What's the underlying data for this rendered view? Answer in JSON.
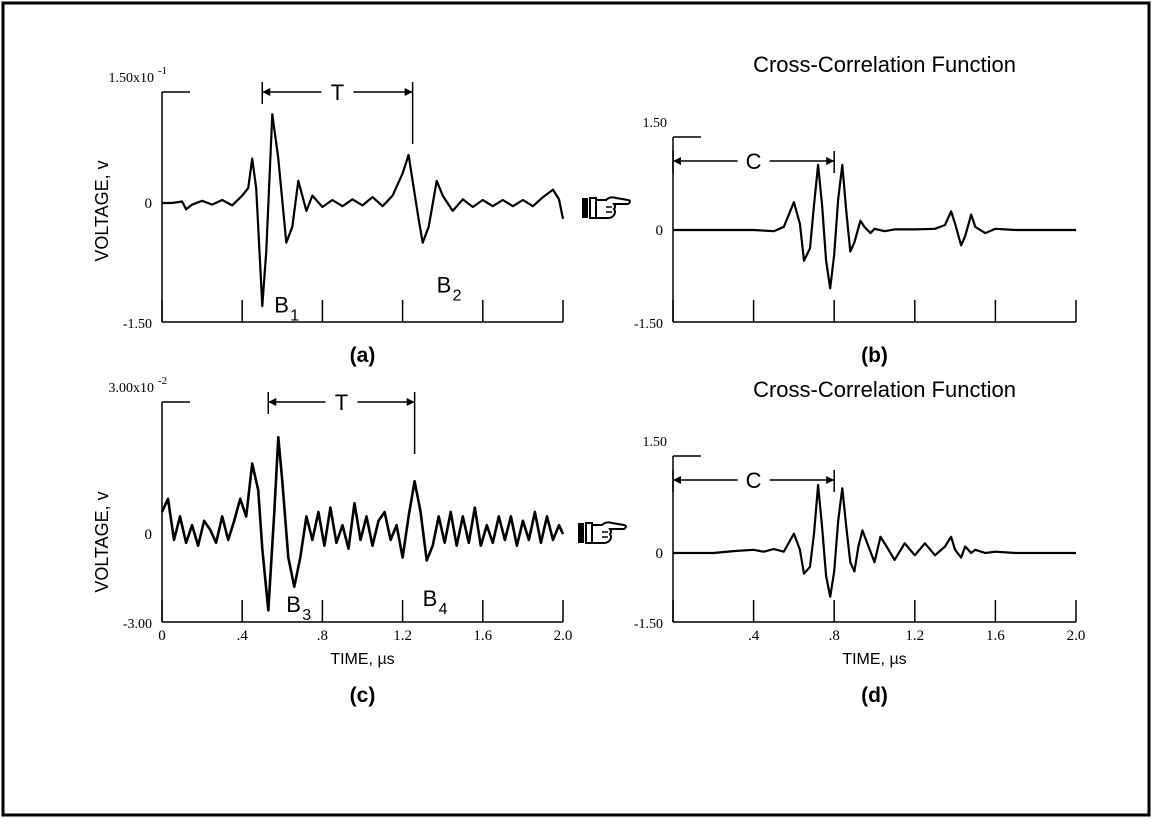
{
  "colors": {
    "ink": "#000000",
    "background": "#ffffff"
  },
  "icons": {
    "pointer": "pointing-hand-icon"
  },
  "chart_data": [
    {
      "id": "a",
      "type": "line",
      "panel_label": "(a)",
      "title": "",
      "ylabel": "VOLTAGE, v",
      "xlabel": "",
      "y_top_label": "1.50x10",
      "y_top_exp": "-1",
      "y_bottom_label": "-1.50",
      "y_zero_label": "0",
      "xlim": [
        0,
        2.0
      ],
      "ylim": [
        -0.15,
        0.15
      ],
      "x_tick_values": [
        0,
        0.4,
        0.8,
        1.2,
        1.6,
        2.0
      ],
      "x_tick_labels": [],
      "annotation": {
        "label": "T",
        "x_start": 0.5,
        "x_end": 1.25
      },
      "peak_labels": [
        {
          "text": "B",
          "sub": "1",
          "x": 0.56,
          "y": -0.095
        },
        {
          "text": "B",
          "sub": "2",
          "x": 1.37,
          "y": -0.07
        }
      ],
      "series": [
        {
          "x": [
            0,
            0.05,
            0.1,
            0.12,
            0.15,
            0.2,
            0.25,
            0.3,
            0.35,
            0.4,
            0.43,
            0.45,
            0.47,
            0.5,
            0.52,
            0.55,
            0.58,
            0.62,
            0.65,
            0.68,
            0.72,
            0.75,
            0.8,
            0.85,
            0.9,
            0.95,
            1.0,
            1.05,
            1.1,
            1.15,
            1.2,
            1.23,
            1.25,
            1.28,
            1.3,
            1.33,
            1.37,
            1.4,
            1.45,
            1.5,
            1.55,
            1.6,
            1.65,
            1.7,
            1.75,
            1.8,
            1.85,
            1.9,
            1.95,
            1.98,
            2.0
          ],
          "y": [
            0,
            0,
            0.002,
            -0.008,
            -0.002,
            0.003,
            -0.002,
            0.004,
            -0.003,
            0.01,
            0.02,
            0.06,
            0.02,
            -0.13,
            -0.06,
            0.12,
            0.06,
            -0.05,
            -0.03,
            0.03,
            -0.01,
            0.01,
            -0.005,
            0.004,
            -0.004,
            0.005,
            -0.003,
            0.008,
            -0.004,
            0.01,
            0.04,
            0.065,
            0.03,
            -0.02,
            -0.05,
            -0.03,
            0.03,
            0.01,
            -0.01,
            0.005,
            -0.005,
            0.004,
            -0.004,
            0.004,
            -0.004,
            0.004,
            -0.004,
            0.008,
            0.018,
            0.005,
            -0.02
          ]
        }
      ]
    },
    {
      "id": "b",
      "type": "line",
      "panel_label": "(b)",
      "title": "Cross-Correlation Function",
      "ylabel": "",
      "xlabel": "",
      "y_top_label": "1.50",
      "y_bottom_label": "-1.50",
      "y_zero_label": "0",
      "xlim": [
        0,
        2.0
      ],
      "ylim": [
        -1.5,
        1.5
      ],
      "x_tick_values": [
        0,
        0.4,
        0.8,
        1.2,
        1.6,
        2.0
      ],
      "x_tick_labels": [],
      "annotation": {
        "label": "C",
        "x_start": 0,
        "x_end": 0.8
      },
      "series": [
        {
          "x": [
            0,
            0.1,
            0.2,
            0.3,
            0.4,
            0.5,
            0.55,
            0.6,
            0.63,
            0.65,
            0.68,
            0.7,
            0.72,
            0.74,
            0.76,
            0.78,
            0.8,
            0.82,
            0.84,
            0.86,
            0.88,
            0.9,
            0.93,
            0.95,
            0.98,
            1.0,
            1.05,
            1.1,
            1.2,
            1.3,
            1.35,
            1.38,
            1.4,
            1.43,
            1.45,
            1.48,
            1.5,
            1.55,
            1.6,
            1.7,
            1.8,
            1.9,
            2.0
          ],
          "y": [
            0,
            0,
            0,
            0,
            0,
            -0.02,
            0.05,
            0.45,
            0.1,
            -0.5,
            -0.3,
            0.4,
            1.05,
            0.4,
            -0.5,
            -0.95,
            -0.4,
            0.5,
            1.05,
            0.3,
            -0.35,
            -0.2,
            0.15,
            0.05,
            -0.05,
            0.02,
            -0.02,
            0.01,
            0.01,
            0.02,
            0.08,
            0.3,
            0.1,
            -0.25,
            -0.1,
            0.25,
            0.05,
            -0.05,
            0.02,
            0,
            0,
            0,
            0
          ]
        }
      ]
    },
    {
      "id": "c",
      "type": "line",
      "panel_label": "(c)",
      "title": "",
      "ylabel": "VOLTAGE, v",
      "xlabel": "TIME, µs",
      "y_top_label": "3.00x10",
      "y_top_exp": "-2",
      "y_bottom_label": "-3.00",
      "y_zero_label": "0",
      "xlim": [
        0,
        2.0
      ],
      "ylim": [
        -0.03,
        0.03
      ],
      "x_tick_values": [
        0,
        0.4,
        0.8,
        1.2,
        1.6,
        2.0
      ],
      "x_tick_labels": [
        "0",
        ".4",
        ".8",
        "1.2",
        "1.6",
        "2.0"
      ],
      "annotation": {
        "label": "T",
        "x_start": 0.53,
        "x_end": 1.26
      },
      "peak_labels": [
        {
          "text": "B",
          "sub": "3",
          "x": 0.62,
          "y": -0.015
        },
        {
          "text": "B",
          "sub": "4",
          "x": 1.3,
          "y": -0.013
        }
      ],
      "series": [
        {
          "x": [
            0,
            0.03,
            0.06,
            0.09,
            0.12,
            0.15,
            0.18,
            0.21,
            0.24,
            0.27,
            0.3,
            0.33,
            0.36,
            0.39,
            0.42,
            0.45,
            0.48,
            0.5,
            0.53,
            0.56,
            0.58,
            0.6,
            0.63,
            0.66,
            0.69,
            0.72,
            0.75,
            0.78,
            0.81,
            0.84,
            0.87,
            0.9,
            0.93,
            0.96,
            0.99,
            1.02,
            1.05,
            1.08,
            1.11,
            1.14,
            1.17,
            1.2,
            1.23,
            1.26,
            1.29,
            1.32,
            1.35,
            1.38,
            1.41,
            1.44,
            1.47,
            1.5,
            1.53,
            1.56,
            1.59,
            1.62,
            1.65,
            1.68,
            1.71,
            1.74,
            1.77,
            1.8,
            1.83,
            1.86,
            1.89,
            1.92,
            1.95,
            1.98,
            2.0
          ],
          "y": [
            0.005,
            0.008,
            -0.002,
            0.004,
            -0.003,
            0.002,
            -0.004,
            0.003,
            0.001,
            -0.003,
            0.004,
            -0.002,
            0.003,
            0.008,
            0.004,
            0.016,
            0.01,
            -0.005,
            -0.026,
            0.005,
            0.022,
            0.012,
            -0.008,
            -0.018,
            -0.008,
            0.004,
            -0.002,
            0.005,
            -0.004,
            0.006,
            -0.003,
            0.002,
            -0.005,
            0.007,
            -0.002,
            0.004,
            -0.004,
            0.003,
            0.005,
            -0.002,
            0.002,
            -0.008,
            0.004,
            0.012,
            0.005,
            -0.009,
            -0.004,
            0.004,
            -0.003,
            0.005,
            -0.004,
            0.004,
            -0.003,
            0.006,
            -0.004,
            0.002,
            -0.003,
            0.004,
            -0.002,
            0.004,
            -0.004,
            0.003,
            -0.002,
            0.005,
            -0.003,
            0.004,
            -0.002,
            0.002,
            0
          ]
        }
      ]
    },
    {
      "id": "d",
      "type": "line",
      "panel_label": "(d)",
      "title": "Cross-Correlation Function",
      "ylabel": "",
      "xlabel": "TIME, µs",
      "y_top_label": "1.50",
      "y_bottom_label": "-1.50",
      "y_zero_label": "0",
      "xlim": [
        0,
        2.0
      ],
      "ylim": [
        -1.5,
        1.5
      ],
      "x_tick_values": [
        0,
        0.4,
        0.8,
        1.2,
        1.6,
        2.0
      ],
      "x_tick_labels": [
        "",
        ".4",
        ".8",
        "1.2",
        "1.6",
        "2.0"
      ],
      "annotation": {
        "label": "C",
        "x_start": 0,
        "x_end": 0.8
      },
      "series": [
        {
          "x": [
            0,
            0.1,
            0.2,
            0.3,
            0.4,
            0.45,
            0.5,
            0.55,
            0.6,
            0.63,
            0.65,
            0.68,
            0.7,
            0.72,
            0.74,
            0.76,
            0.78,
            0.8,
            0.82,
            0.84,
            0.86,
            0.88,
            0.9,
            0.92,
            0.94,
            0.97,
            1.0,
            1.03,
            1.06,
            1.1,
            1.15,
            1.2,
            1.25,
            1.3,
            1.35,
            1.38,
            1.4,
            1.43,
            1.45,
            1.48,
            1.5,
            1.55,
            1.6,
            1.7,
            1.8,
            1.9,
            2.0
          ],
          "y": [
            0,
            0,
            0,
            0.03,
            0.05,
            0.02,
            0.06,
            0.02,
            0.3,
            0.05,
            -0.45,
            -0.3,
            0.3,
            1.05,
            0.4,
            -0.5,
            -0.95,
            -0.4,
            0.5,
            1.0,
            0.4,
            -0.2,
            -0.4,
            0.1,
            0.35,
            0.1,
            -0.2,
            0.25,
            0.1,
            -0.15,
            0.15,
            -0.05,
            0.15,
            -0.05,
            0.1,
            0.25,
            0.05,
            -0.1,
            0.1,
            0.0,
            0.05,
            0,
            0.02,
            0,
            0,
            0,
            0
          ]
        }
      ]
    }
  ]
}
